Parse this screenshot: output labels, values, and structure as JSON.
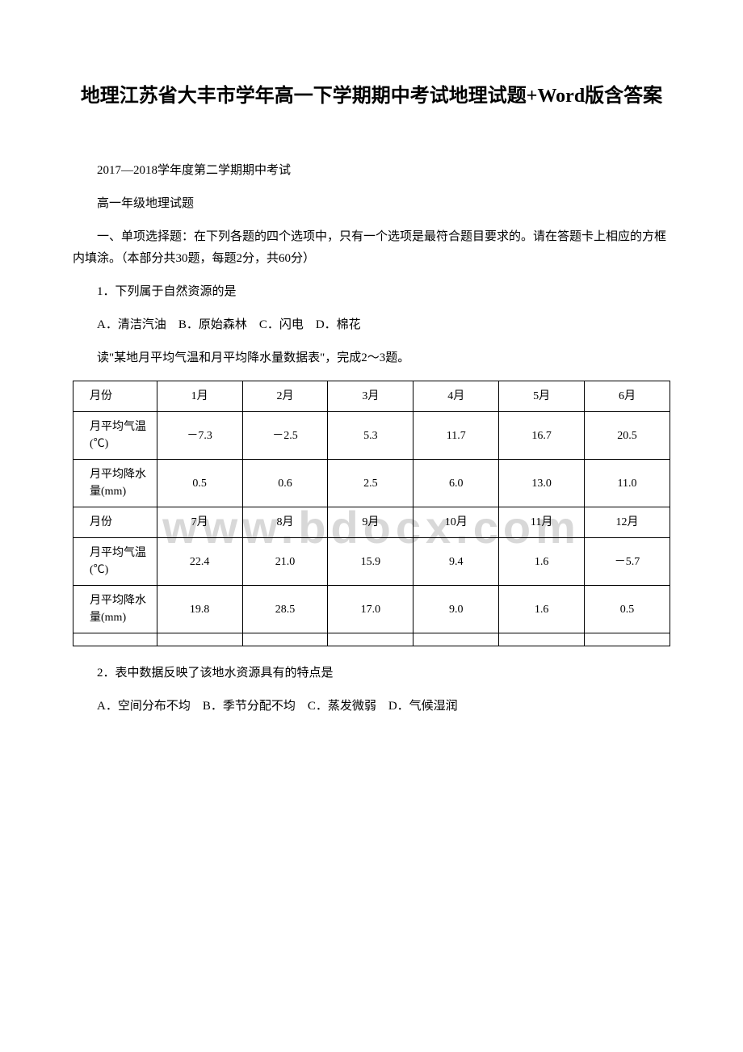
{
  "title": "地理江苏省大丰市学年高一下学期期中考试地理试题+Word版含答案",
  "watermark": "www.bdocx.com",
  "header_line1": "2017—2018学年度第二学期期中考试",
  "header_line2": "高一年级地理试题",
  "instructions": "一、单项选择题：在下列各题的四个选项中，只有一个选项是最符合题目要求的。请在答题卡上相应的方框内填涂。（本部分共30题，每题2分，共60分）",
  "q1": {
    "stem": "1．下列属于自然资源的是",
    "options": "A．清洁汽油　B．原始森林　C．闪电　D．棉花"
  },
  "intro_q2_3": "读\"某地月平均气温和月平均降水量数据表\"，完成2～3题。",
  "table": {
    "rows": [
      {
        "label": "月份",
        "c": [
          "1月",
          "2月",
          "3月",
          "4月",
          "5月",
          "6月"
        ]
      },
      {
        "label": "月平均气温(℃)",
        "c": [
          "－7.3",
          "－2.5",
          "5.3",
          "11.7",
          "16.7",
          "20.5"
        ]
      },
      {
        "label": "月平均降水量(mm)",
        "c": [
          "0.5",
          "0.6",
          "2.5",
          "6.0",
          "13.0",
          "11.0"
        ]
      },
      {
        "label": "月份",
        "c": [
          "7月",
          "8月",
          "9月",
          "10月",
          "11月",
          "12月"
        ]
      },
      {
        "label": "月平均气温(℃)",
        "c": [
          "22.4",
          "21.0",
          "15.9",
          "9.4",
          "1.6",
          "－5.7"
        ]
      },
      {
        "label": "月平均降水量(mm)",
        "c": [
          "19.8",
          "28.5",
          "17.0",
          "9.0",
          "1.6",
          "0.5"
        ]
      }
    ]
  },
  "q2": {
    "stem": "2．表中数据反映了该地水资源具有的特点是",
    "options": "A．空间分布不均　B．季节分配不均　C．蒸发微弱　D．气候湿润"
  }
}
